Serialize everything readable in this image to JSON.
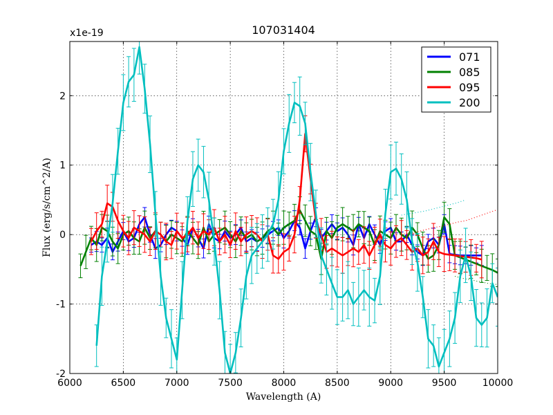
{
  "chart_data": {
    "type": "line",
    "title": "107031404",
    "xlabel": "Wavelength (A)",
    "ylabel": "Flux (erg/s/cm^2/A)",
    "offset_label": "x1e-19",
    "xlim": [
      6000,
      10000
    ],
    "ylim": [
      -2.0,
      2.78
    ],
    "grid": true,
    "legend_position": "top-right",
    "x_ticks": [
      6000,
      6500,
      7000,
      7500,
      8000,
      8500,
      9000,
      9500,
      10000
    ],
    "y_ticks": [
      -2,
      -1,
      0,
      1,
      2
    ],
    "series": [
      {
        "name": "071",
        "color": "#0000ff",
        "x": [
          6200,
          6250,
          6300,
          6350,
          6400,
          6450,
          6500,
          6550,
          6600,
          6650,
          6700,
          6750,
          6800,
          6850,
          6900,
          6950,
          7000,
          7050,
          7100,
          7150,
          7200,
          7250,
          7300,
          7350,
          7400,
          7450,
          7500,
          7550,
          7600,
          7650,
          7700,
          7750,
          7800,
          7850,
          7900,
          7950,
          8000,
          8050,
          8100,
          8150,
          8200,
          8250,
          8300,
          8350,
          8400,
          8450,
          8500,
          8550,
          8600,
          8650,
          8700,
          8750,
          8800,
          8850,
          8900,
          8950,
          9000,
          9050,
          9100,
          9150,
          9200,
          9250,
          9300,
          9350,
          9400,
          9450,
          9500,
          9550,
          9600,
          9650,
          9700,
          9750,
          9800,
          9850
        ],
        "y": [
          -0.15,
          -0.1,
          -0.15,
          -0.05,
          -0.25,
          -0.1,
          0.05,
          -0.1,
          -0.05,
          0.15,
          0.25,
          0.0,
          -0.2,
          -0.15,
          0.0,
          0.1,
          0.05,
          -0.05,
          -0.15,
          0.1,
          -0.05,
          -0.2,
          0.15,
          -0.05,
          -0.1,
          0.05,
          -0.05,
          0.0,
          0.1,
          -0.1,
          -0.05,
          -0.1,
          -0.05,
          0.0,
          0.05,
          0.1,
          -0.05,
          0.05,
          0.2,
          0.1,
          -0.2,
          0.05,
          0.25,
          -0.05,
          0.05,
          0.15,
          0.05,
          0.1,
          0.0,
          -0.15,
          0.15,
          -0.05,
          0.15,
          0.0,
          -0.15,
          0.05,
          0.1,
          -0.1,
          -0.1,
          0.0,
          -0.15,
          -0.25,
          -0.3,
          -0.1,
          -0.05,
          -0.15,
          0.15,
          -0.28,
          -0.29,
          -0.3,
          -0.3,
          -0.3,
          -0.3,
          -0.3
        ],
        "err": 0.12,
        "lower_y": null
      },
      {
        "name": "085",
        "color": "#008000",
        "x": [
          6100,
          6150,
          6200,
          6250,
          6300,
          6350,
          6400,
          6450,
          6500,
          6550,
          6600,
          6650,
          6700,
          6750,
          6800,
          6850,
          6900,
          6950,
          7000,
          7050,
          7100,
          7150,
          7200,
          7250,
          7300,
          7350,
          7400,
          7450,
          7500,
          7550,
          7600,
          7650,
          7700,
          7750,
          7800,
          7850,
          7900,
          7950,
          8000,
          8050,
          8100,
          8150,
          8200,
          8250,
          8300,
          8350,
          8400,
          8450,
          8500,
          8550,
          8600,
          8650,
          8700,
          8750,
          8800,
          8850,
          8900,
          8950,
          9000,
          9050,
          9100,
          9150,
          9200,
          9250,
          9300,
          9350,
          9400,
          9450,
          9500,
          9550,
          9600,
          9650,
          9700,
          9750,
          9800,
          9850,
          9900,
          9950,
          10000
        ],
        "y": [
          -0.45,
          -0.25,
          -0.05,
          -0.15,
          0.1,
          0.05,
          -0.1,
          -0.2,
          0.0,
          0.05,
          -0.05,
          -0.1,
          0.1,
          -0.05,
          0.05,
          0.0,
          -0.1,
          0.0,
          -0.05,
          -0.1,
          0.05,
          -0.05,
          -0.15,
          0.1,
          -0.1,
          0.0,
          0.05,
          0.1,
          0.0,
          -0.1,
          0.05,
          -0.05,
          0.0,
          -0.1,
          -0.05,
          0.05,
          0.1,
          0.0,
          0.1,
          0.15,
          0.2,
          0.35,
          0.2,
          0.05,
          0.0,
          -0.35,
          0.05,
          -0.05,
          0.1,
          0.15,
          0.1,
          0.05,
          0.15,
          0.1,
          0.05,
          -0.15,
          0.05,
          0.0,
          -0.05,
          0.1,
          0.0,
          -0.05,
          0.1,
          0.0,
          -0.2,
          -0.35,
          -0.3,
          -0.15,
          0.25,
          0.15,
          -0.3,
          -0.33,
          -0.36,
          -0.39,
          -0.42,
          -0.45,
          -0.48,
          -0.51,
          -0.55
        ],
        "err": 0.2,
        "lower_y": [
          -0.6,
          -0.62,
          -0.64,
          -0.65,
          -0.67,
          -0.68,
          -0.7,
          -0.71,
          -0.72
        ]
      },
      {
        "name": "095",
        "color": "#ff0000",
        "x": [
          6200,
          6250,
          6300,
          6350,
          6400,
          6450,
          6500,
          6550,
          6600,
          6650,
          6700,
          6750,
          6800,
          6850,
          6900,
          6950,
          7000,
          7050,
          7100,
          7150,
          7200,
          7250,
          7300,
          7350,
          7400,
          7450,
          7500,
          7550,
          7600,
          7650,
          7700,
          7750,
          7800,
          7850,
          7900,
          7950,
          8000,
          8050,
          8100,
          8150,
          8200,
          8250,
          8300,
          8350,
          8400,
          8450,
          8500,
          8550,
          8600,
          8650,
          8700,
          8750,
          8800,
          8850,
          8900,
          8950,
          9000,
          9050,
          9100,
          9150,
          9200,
          9250,
          9300,
          9350,
          9400,
          9450,
          9500,
          9550,
          9600,
          9650,
          9700,
          9750,
          9800,
          9850
        ],
        "y": [
          -0.1,
          0.05,
          0.15,
          0.45,
          0.4,
          0.2,
          0.05,
          -0.05,
          0.1,
          0.05,
          0.0,
          -0.1,
          0.05,
          0.0,
          -0.1,
          -0.15,
          0.05,
          -0.05,
          0.0,
          0.1,
          -0.05,
          0.05,
          0.0,
          0.1,
          -0.1,
          0.0,
          -0.15,
          0.05,
          -0.1,
          0.0,
          0.05,
          0.0,
          -0.1,
          0.0,
          -0.3,
          -0.35,
          -0.25,
          -0.2,
          0.0,
          0.5,
          1.45,
          0.8,
          0.2,
          0.0,
          -0.25,
          -0.2,
          -0.25,
          -0.3,
          -0.25,
          -0.2,
          -0.25,
          -0.15,
          -0.3,
          -0.15,
          0.0,
          -0.15,
          -0.2,
          -0.1,
          -0.05,
          -0.15,
          -0.25,
          -0.2,
          -0.3,
          -0.25,
          -0.1,
          -0.25,
          -0.28,
          -0.29,
          -0.3,
          -0.31,
          -0.32,
          -0.33,
          -0.34,
          -0.36
        ],
        "err": 0.22,
        "upper_y": [
          0.0,
          0.02,
          0.04,
          0.07,
          0.1,
          0.12,
          0.15,
          0.18,
          0.2,
          0.24,
          0.28,
          0.32,
          0.36
        ]
      },
      {
        "name": "200",
        "color": "#00bfbf",
        "x": [
          6250,
          6300,
          6350,
          6400,
          6450,
          6500,
          6550,
          6600,
          6650,
          6700,
          6750,
          6800,
          6850,
          6900,
          6950,
          7000,
          7050,
          7100,
          7150,
          7200,
          7250,
          7300,
          7350,
          7400,
          7450,
          7500,
          7550,
          7600,
          7650,
          7700,
          7750,
          7800,
          7850,
          7900,
          7950,
          8000,
          8050,
          8100,
          8150,
          8200,
          8250,
          8300,
          8350,
          8400,
          8450,
          8500,
          8550,
          8600,
          8650,
          8700,
          8750,
          8800,
          8850,
          8900,
          8950,
          9000,
          9050,
          9100,
          9150,
          9200,
          9250,
          9300,
          9350,
          9400,
          9450,
          9500,
          9550,
          9600,
          9650,
          9700,
          9750,
          9800,
          9850,
          9900,
          9950,
          10000
        ],
        "y": [
          -1.6,
          -0.6,
          -0.1,
          0.45,
          1.2,
          1.9,
          2.2,
          2.3,
          2.7,
          2.1,
          1.3,
          0.3,
          -0.6,
          -1.2,
          -1.5,
          -1.8,
          -0.8,
          0.2,
          0.8,
          1.0,
          0.9,
          0.5,
          -0.1,
          -0.8,
          -1.7,
          -2.0,
          -1.7,
          -1.2,
          -0.6,
          -0.3,
          -0.2,
          -0.1,
          0.0,
          0.15,
          0.5,
          1.2,
          1.6,
          1.9,
          1.85,
          1.6,
          0.9,
          0.3,
          -0.3,
          -0.5,
          -0.7,
          -0.9,
          -0.9,
          -0.8,
          -1.0,
          -0.9,
          -0.8,
          -0.9,
          -0.95,
          -0.6,
          0.3,
          0.9,
          0.95,
          0.8,
          0.5,
          -0.1,
          -0.4,
          -0.9,
          -1.5,
          -1.6,
          -1.9,
          -1.7,
          -1.5,
          -1.2,
          -0.6,
          -0.3,
          -0.6,
          -1.2,
          -1.3,
          -1.2,
          -0.7,
          -0.9
        ],
        "err": 0.35,
        "upper_y": [
          0.28,
          0.3,
          0.32,
          0.34,
          0.37,
          0.4,
          0.43,
          0.46,
          0.5
        ]
      }
    ]
  }
}
